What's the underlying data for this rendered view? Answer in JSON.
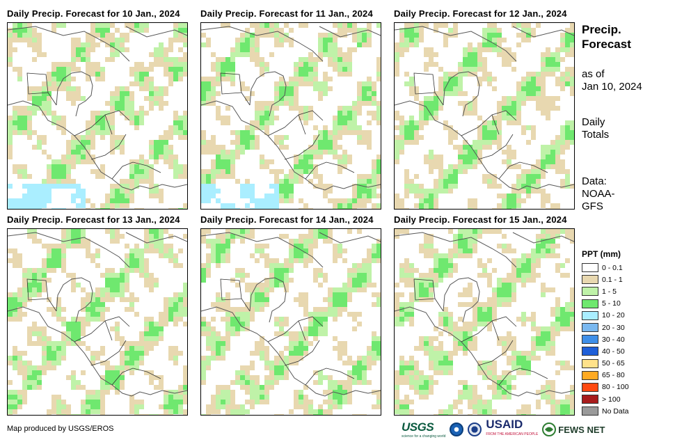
{
  "panels": [
    {
      "title": "Daily Precip. Forecast for 10 Jan., 2024"
    },
    {
      "title": "Daily Precip. Forecast for 11 Jan., 2024"
    },
    {
      "title": "Daily Precip. Forecast for 12 Jan., 2024"
    },
    {
      "title": "Daily Precip. Forecast for 13 Jan., 2024"
    },
    {
      "title": "Daily Precip. Forecast for 14 Jan., 2024"
    },
    {
      "title": "Daily Precip. Forecast for 15 Jan., 2024"
    }
  ],
  "sidebar": {
    "title_line1": "Precip.",
    "title_line2": "Forecast",
    "asof_line1": "as of",
    "asof_line2": "Jan 10, 2024",
    "totals_line1": "Daily",
    "totals_line2": "Totals",
    "data_line1": "Data:",
    "data_line2": "NOAA-",
    "data_line3": "GFS"
  },
  "legend": {
    "title": "PPT (mm)",
    "items": [
      {
        "label": "0 - 0.1",
        "color": "#ffffff"
      },
      {
        "label": "0.1 - 1",
        "color": "#e8d8b0"
      },
      {
        "label": "1 - 5",
        "color": "#bff2a8"
      },
      {
        "label": "5 - 10",
        "color": "#6fe86f"
      },
      {
        "label": "10 - 20",
        "color": "#aaeeff"
      },
      {
        "label": "20 - 30",
        "color": "#7ab8f0"
      },
      {
        "label": "30 - 40",
        "color": "#3f8fe8"
      },
      {
        "label": "40 - 50",
        "color": "#1f5fd8"
      },
      {
        "label": "50 - 65",
        "color": "#ffe28a"
      },
      {
        "label": "65 - 80",
        "color": "#ffaa22"
      },
      {
        "label": "80 - 100",
        "color": "#ff4a12"
      },
      {
        "label": "> 100",
        "color": "#a81c1c"
      },
      {
        "label": "No Data",
        "color": "#9a9a9a"
      }
    ]
  },
  "footer": {
    "credit": "Map produced by USGS/EROS",
    "logos": {
      "usgs": "USGS",
      "usgs_tagline": "science for a changing world",
      "usaid": "USAID",
      "usaid_tagline": "FROM THE AMERICAN PEOPLE",
      "fews": "FEWS NET"
    }
  }
}
